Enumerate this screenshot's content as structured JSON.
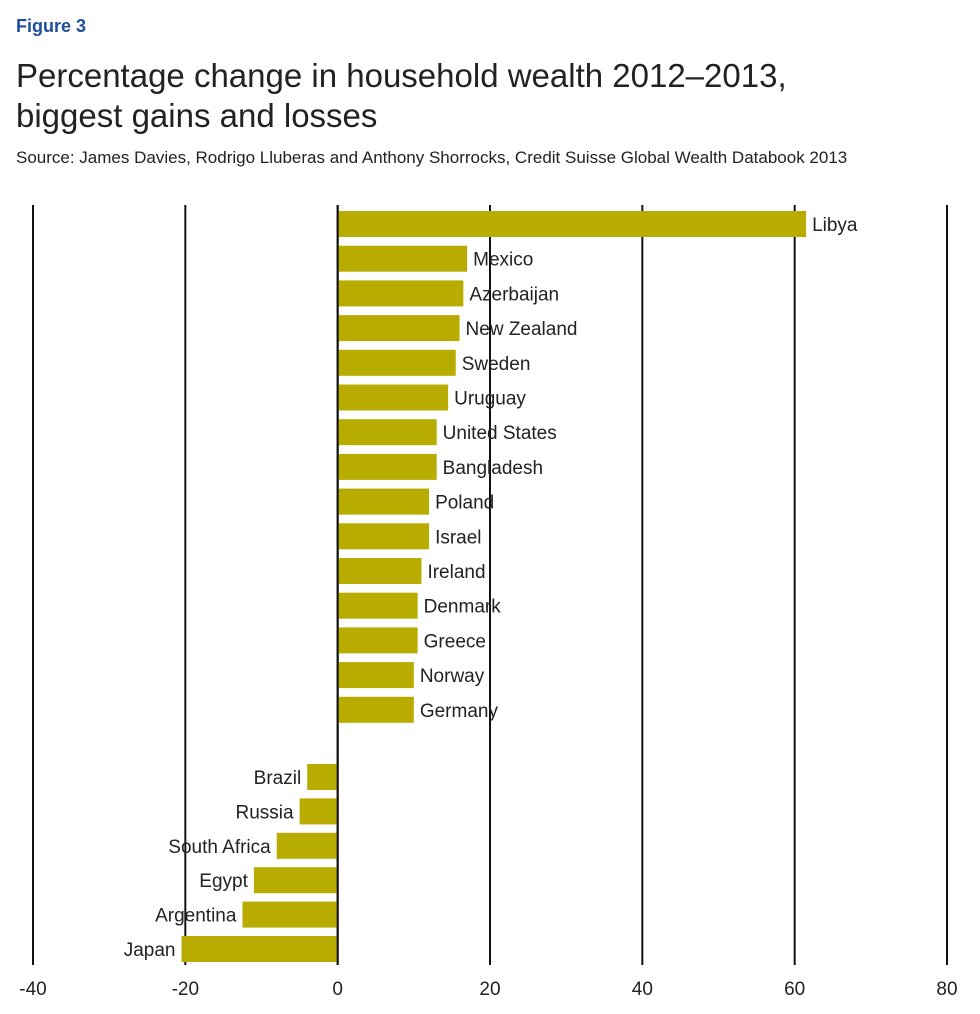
{
  "figure_label": "Figure 3",
  "title_line1": "Percentage change in household wealth 2012–2013,",
  "title_line2": "biggest gains and losses",
  "source": "Source: James Davies, Rodrigo Lluberas and Anthony Shorrocks, Credit Suisse Global Wealth Databook 2013",
  "chart_data": {
    "type": "bar",
    "orientation": "horizontal",
    "title": "Percentage change in household wealth 2012–2013, biggest gains and losses",
    "xlabel": "",
    "ylabel": "",
    "xlim": [
      -40,
      80
    ],
    "xticks": [
      -40,
      -20,
      0,
      20,
      40,
      60,
      80
    ],
    "grid": true,
    "bar_color": "#b8ac00",
    "gainers": [
      {
        "country": "Libya",
        "value": 61.5
      },
      {
        "country": "Mexico",
        "value": 17
      },
      {
        "country": "Azerbaijan",
        "value": 16.5
      },
      {
        "country": "New Zealand",
        "value": 16
      },
      {
        "country": "Sweden",
        "value": 15.5
      },
      {
        "country": "Uruguay",
        "value": 14.5
      },
      {
        "country": "United States",
        "value": 13
      },
      {
        "country": "Bangladesh",
        "value": 13
      },
      {
        "country": "Poland",
        "value": 12
      },
      {
        "country": "Israel",
        "value": 12
      },
      {
        "country": "Ireland",
        "value": 11
      },
      {
        "country": "Denmark",
        "value": 10.5
      },
      {
        "country": "Greece",
        "value": 10.5
      },
      {
        "country": "Norway",
        "value": 10
      },
      {
        "country": "Germany",
        "value": 10
      }
    ],
    "losers": [
      {
        "country": "Brazil",
        "value": -4
      },
      {
        "country": "Russia",
        "value": -5
      },
      {
        "country": "South Africa",
        "value": -8
      },
      {
        "country": "Egypt",
        "value": -11
      },
      {
        "country": "Argentina",
        "value": -12.5
      },
      {
        "country": "Japan",
        "value": -20.5
      }
    ]
  }
}
